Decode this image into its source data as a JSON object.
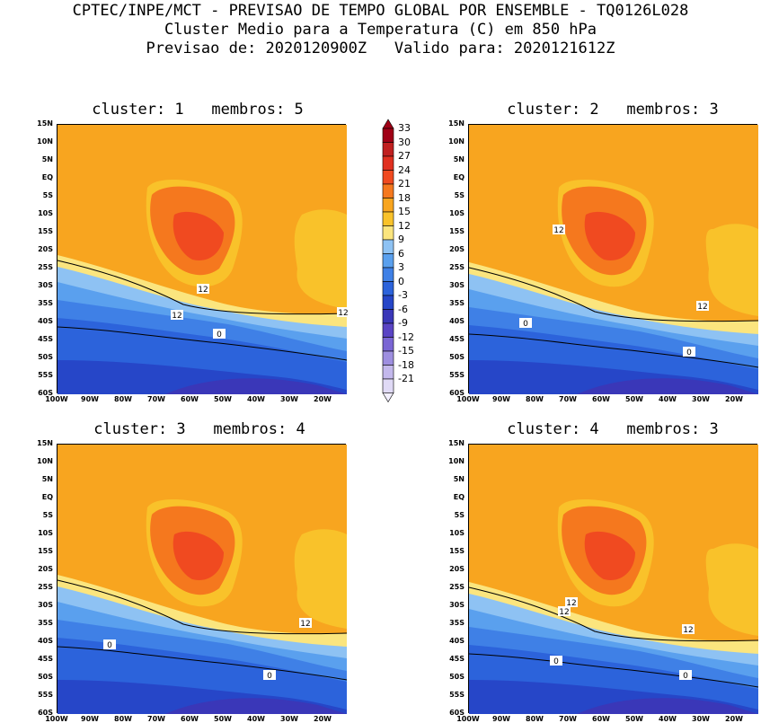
{
  "header": {
    "line1": "CPTEC/INPE/MCT - PREVISAO DE TEMPO GLOBAL POR ENSEMBLE - TQ0126L028",
    "line2": "Cluster Medio para a Temperatura (C) em 850 hPa",
    "line3": "Previsao de: 2020120900Z   Valido para: 2020121612Z"
  },
  "panels": [
    {
      "title": "cluster: 1   membros: 5",
      "contour_labels": [
        "12",
        "12",
        "12",
        "0"
      ]
    },
    {
      "title": "cluster: 2   membros: 3",
      "contour_labels": [
        "12",
        "12",
        "0",
        "0"
      ]
    },
    {
      "title": "cluster: 3   membros: 4",
      "contour_labels": [
        "12",
        "0",
        "0"
      ]
    },
    {
      "title": "cluster: 4   membros: 3",
      "contour_labels": [
        "12",
        "12",
        "12",
        "0",
        "0"
      ]
    }
  ],
  "lat_ticks": [
    "15N",
    "10N",
    "5N",
    "EQ",
    "5S",
    "10S",
    "15S",
    "20S",
    "25S",
    "30S",
    "35S",
    "40S",
    "45S",
    "50S",
    "55S",
    "60S"
  ],
  "lon_ticks": [
    "100W",
    "90W",
    "80W",
    "70W",
    "60W",
    "50W",
    "40W",
    "30W",
    "20W"
  ],
  "colorbar": {
    "labels": [
      "33",
      "30",
      "27",
      "24",
      "21",
      "18",
      "15",
      "12",
      "9",
      "6",
      "3",
      "0",
      "-3",
      "-6",
      "-9",
      "-12",
      "-15",
      "-18",
      "-21"
    ],
    "colors": [
      "#a00016",
      "#c02020",
      "#e03020",
      "#f04a20",
      "#f5781e",
      "#f8a51f",
      "#f9c22a",
      "#fbe57e",
      "#8ec2f3",
      "#5aa0ee",
      "#3f80e6",
      "#2c63db",
      "#2646c8",
      "#3a37b8",
      "#5a44c4",
      "#7a66d4",
      "#9e8fe0",
      "#c3b8ec",
      "#e0daf6"
    ]
  }
}
